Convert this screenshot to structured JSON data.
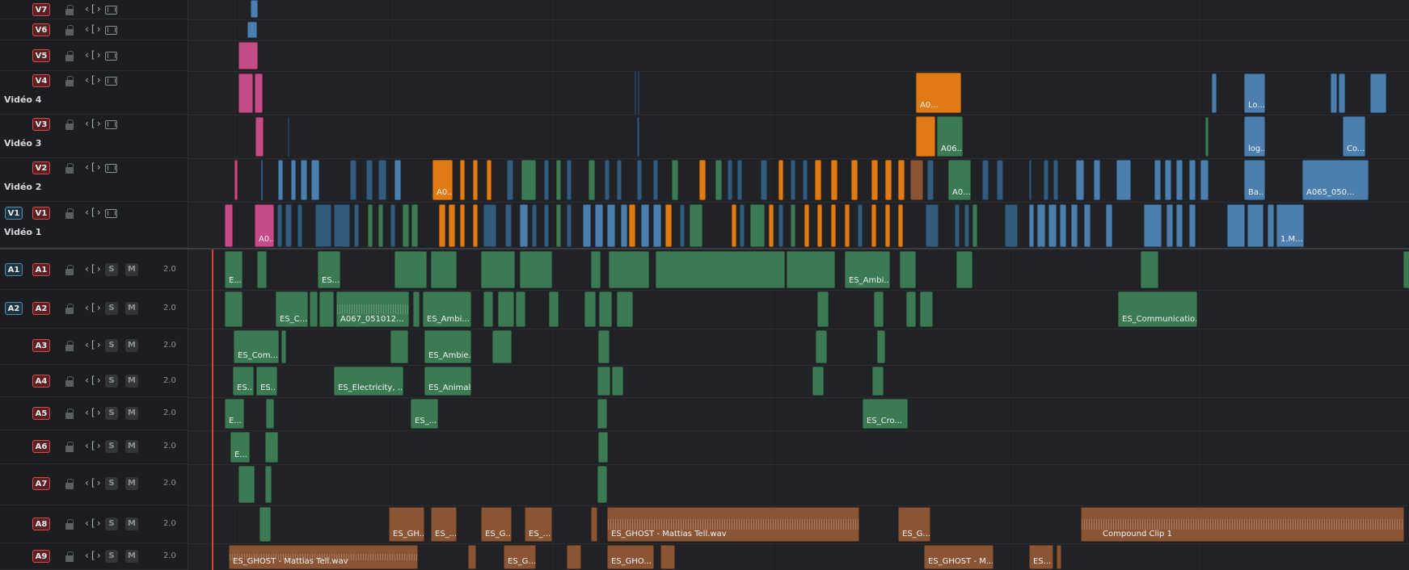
{
  "video_tracks": [
    {
      "id": "V7",
      "title": ""
    },
    {
      "id": "V6",
      "title": ""
    },
    {
      "id": "V5",
      "title": ""
    },
    {
      "id": "V4",
      "title": "Vidéo 4"
    },
    {
      "id": "V3",
      "title": "Vidéo 3"
    },
    {
      "id": "V2",
      "title": "Vidéo 2"
    },
    {
      "id": "V1",
      "title": "Vidéo 1",
      "source": "V1"
    }
  ],
  "audio_tracks": [
    {
      "id": "A1",
      "source": "A1",
      "solo": "S",
      "mute": "M",
      "volume": "2.0"
    },
    {
      "id": "A2",
      "source": "A2",
      "solo": "S",
      "mute": "M",
      "volume": "2.0"
    },
    {
      "id": "A3",
      "solo": "S",
      "mute": "M",
      "volume": "2.0"
    },
    {
      "id": "A4",
      "solo": "S",
      "mute": "M",
      "volume": "2.0"
    },
    {
      "id": "A5",
      "solo": "S",
      "mute": "M",
      "volume": "2.0"
    },
    {
      "id": "A6",
      "solo": "S",
      "mute": "M",
      "volume": "2.0"
    },
    {
      "id": "A7",
      "solo": "S",
      "mute": "M",
      "volume": "2.0"
    },
    {
      "id": "A8",
      "solo": "S",
      "mute": "M",
      "volume": "2.0"
    },
    {
      "id": "A9",
      "solo": "S",
      "mute": "M",
      "volume": "2.0"
    }
  ],
  "icons": {
    "lock": "lock-icon",
    "trim": "auto-select-icon",
    "film": "film-strip-icon"
  },
  "trim_glyph": "‹[›",
  "clip_labels": {
    "v4_a0": "A0...",
    "v3_a06": "A06...",
    "v3_log": "log...",
    "v3_co": "Co...",
    "v4_lo": "Lo...",
    "v2_a0_a": "A0...",
    "v2_a0_b": "A0...",
    "v2_ba": "Ba...",
    "v2_a065": "A065_050...",
    "v1_a0": "A0...",
    "v1_1m": "1.M...",
    "a1_e": "E...",
    "a1_es": "ES...",
    "a1_ambi": "ES_Ambi...",
    "a2_esc": "ES_C...",
    "a2_a067": "A067_051012...",
    "a2_ambi": "ES_Ambi...",
    "a2_comm": "ES_Communicatio...",
    "a3_com": "ES_Com...",
    "a3_ambie": "ES_Ambie...",
    "a4_es1": "ES...",
    "a4_es2": "ES...",
    "a4_elec": "ES_Electricity, ...",
    "a4_animal": "ES_Animal...",
    "a5_e": "E...",
    "a5_es": "ES_...",
    "a5_cro": "ES_Cro...",
    "a6_e": "E...",
    "a8_gh": "ES_GH...",
    "a8_es1": "ES_...",
    "a8_g": "ES_G...",
    "a8_es2": "ES_...",
    "a8_ghost": "ES_GHOST - Mattias Tell.wav",
    "a8_g2": "ES_G...",
    "a8_compound": "Compound Clip 1",
    "a9_ghost": "ES_GHOST - Mattias Tell.wav",
    "a9_g": "ES_G...",
    "a9_gho": "ES_GHO...",
    "a9_ghostm": "ES_GHOST - M...",
    "a9_es": "ES..."
  },
  "colors": {
    "video_blue": "#4d7fae",
    "video_orange": "#e07a14",
    "video_pink": "#c54c86",
    "audio_green": "#3c7a54",
    "audio_brown": "#8a5535",
    "playhead": "#e0433b"
  }
}
